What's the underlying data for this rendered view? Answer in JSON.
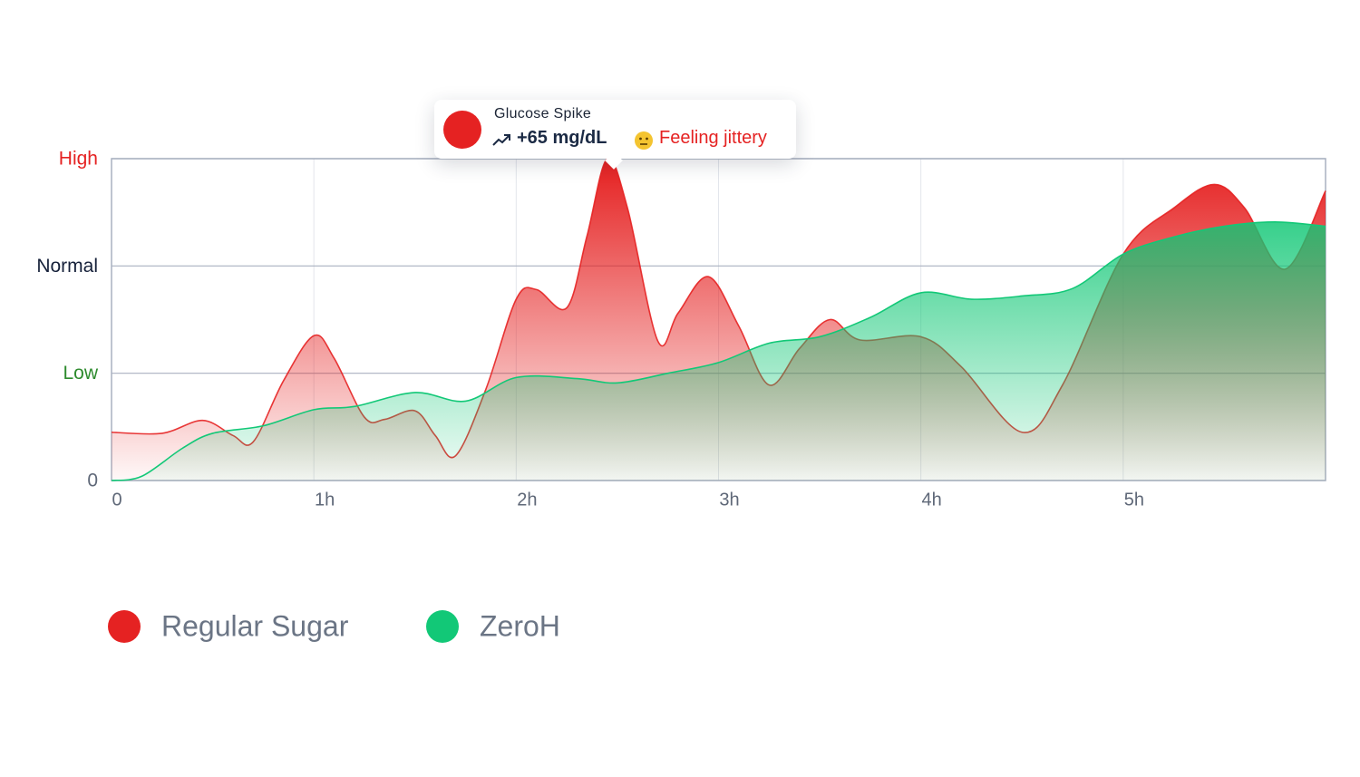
{
  "chart_data": {
    "type": "area",
    "xlim": [
      0,
      6
    ],
    "xticks": [
      0,
      {
        "value": 1,
        "label": "1h"
      },
      {
        "value": 2,
        "label": "2h"
      },
      {
        "value": 3,
        "label": "3h"
      },
      {
        "value": 4,
        "label": "4h"
      },
      {
        "value": 5,
        "label": "5h"
      }
    ],
    "ylim": [
      0,
      3
    ],
    "yticks": [
      {
        "value": 0,
        "label": "0",
        "color": "#5f6878"
      },
      {
        "value": 1,
        "label": "Low",
        "color": "#2e8b2e"
      },
      {
        "value": 2,
        "label": "Normal",
        "color": "#16213a"
      },
      {
        "value": 3,
        "label": "High",
        "color": "#e52222"
      }
    ],
    "grid": true,
    "series": [
      {
        "name": "Regular Sugar",
        "color": "#e52222",
        "x": [
          0,
          0.25,
          0.45,
          0.6,
          0.7,
          0.85,
          1.0,
          1.1,
          1.25,
          1.35,
          1.5,
          1.6,
          1.7,
          1.85,
          2.0,
          2.1,
          2.25,
          2.35,
          2.45,
          2.55,
          2.7,
          2.8,
          2.95,
          3.1,
          3.25,
          3.4,
          3.55,
          3.7,
          4.0,
          4.2,
          4.5,
          4.7,
          5.0,
          5.25,
          5.45,
          5.6,
          5.8,
          6.0
        ],
        "values": [
          0.45,
          0.44,
          0.56,
          0.42,
          0.36,
          0.93,
          1.35,
          1.14,
          0.59,
          0.57,
          0.65,
          0.42,
          0.23,
          0.85,
          1.69,
          1.78,
          1.61,
          2.28,
          3.0,
          2.54,
          1.3,
          1.56,
          1.9,
          1.44,
          0.89,
          1.23,
          1.5,
          1.31,
          1.34,
          1.06,
          0.45,
          0.89,
          2.11,
          2.54,
          2.76,
          2.54,
          1.97,
          2.7
        ]
      },
      {
        "name": "ZeroH",
        "color": "#12c877",
        "x": [
          0,
          0.15,
          0.35,
          0.5,
          0.75,
          1.0,
          1.2,
          1.5,
          1.75,
          2.0,
          2.3,
          2.5,
          2.75,
          3.0,
          3.25,
          3.5,
          3.75,
          4.0,
          4.25,
          4.5,
          4.75,
          5.0,
          5.25,
          5.5,
          5.75,
          6.0
        ],
        "values": [
          0,
          0.04,
          0.3,
          0.44,
          0.51,
          0.66,
          0.69,
          0.82,
          0.74,
          0.96,
          0.95,
          0.91,
          1.0,
          1.1,
          1.28,
          1.34,
          1.52,
          1.75,
          1.69,
          1.72,
          1.79,
          2.11,
          2.27,
          2.37,
          2.41,
          2.37
        ]
      }
    ],
    "annotation": {
      "title": "Glucose Spike",
      "value": "+65 mg/dL",
      "note": "Feeling jittery"
    }
  }
}
